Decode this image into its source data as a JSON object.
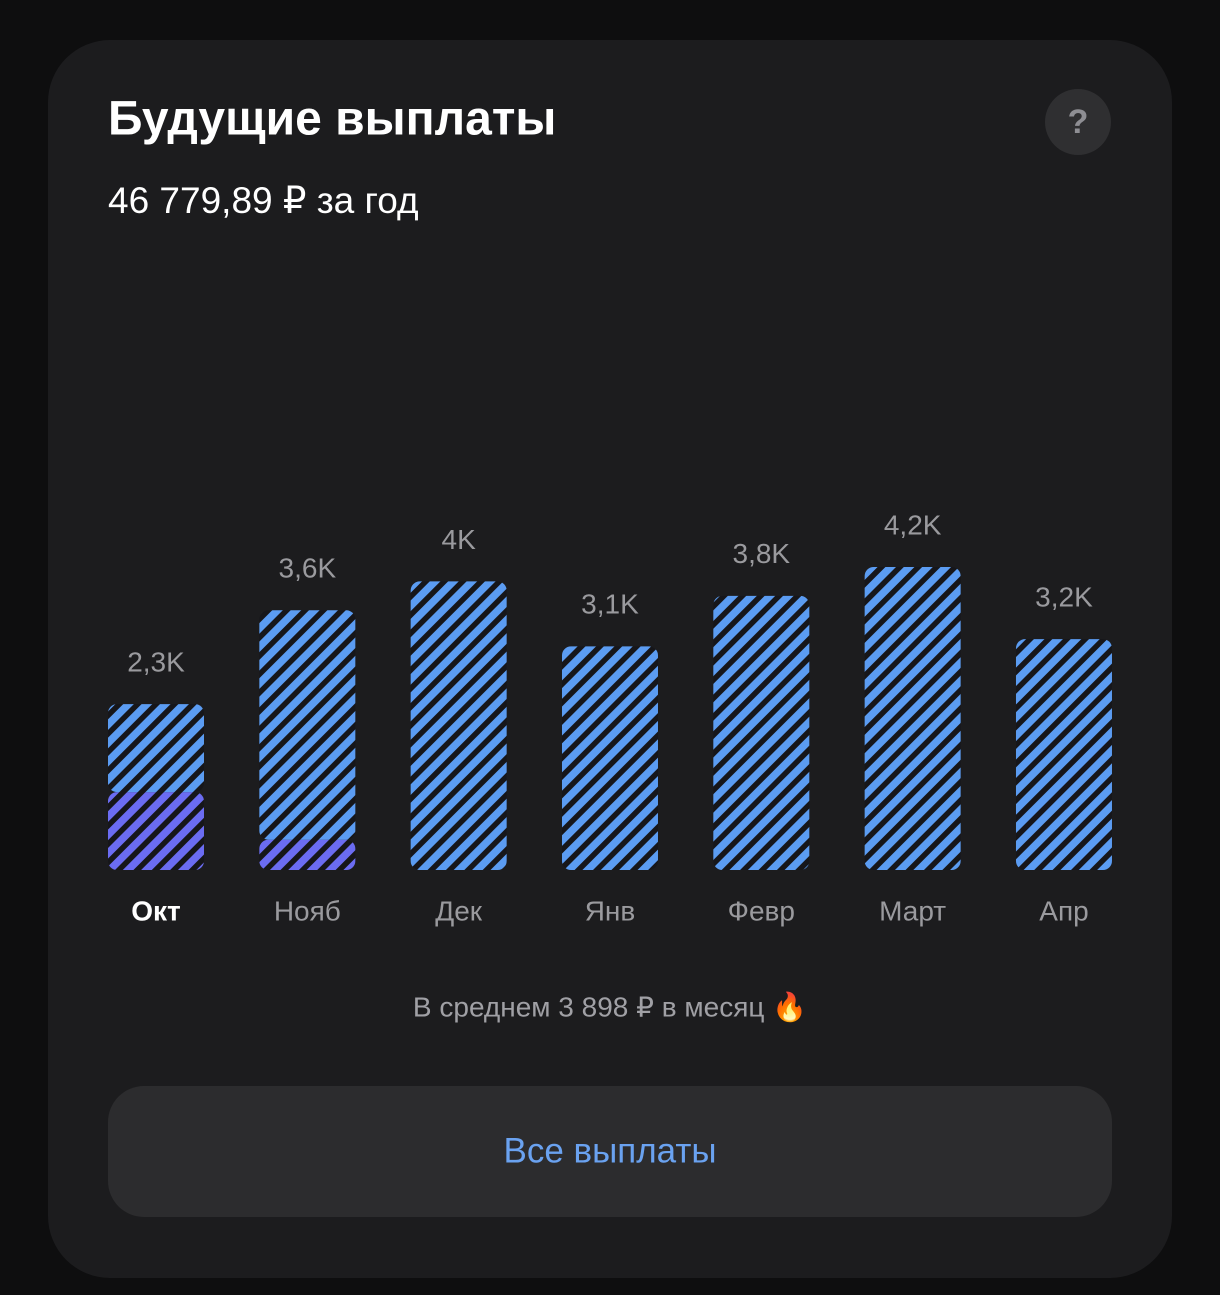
{
  "header": {
    "title": "Будущие выплаты",
    "subtitle": "46 779,89 ₽ за год",
    "help": "?"
  },
  "chart_data": {
    "type": "bar",
    "stacked": true,
    "categories": [
      "Окт",
      "Нояб",
      "Дек",
      "Янв",
      "Февр",
      "Март",
      "Апр"
    ],
    "selected_index": 0,
    "series": [
      {
        "color": "#6b6cf2",
        "values": [
          1080,
          420,
          null,
          null,
          null,
          null,
          null
        ]
      },
      {
        "color": "#5b9cf2",
        "values": [
          1220,
          3180,
          4000,
          3100,
          3800,
          4200,
          3200
        ]
      }
    ],
    "totals": {
      "values": [
        2300,
        3600,
        4000,
        3100,
        3800,
        4200,
        3200
      ],
      "value_labels": [
        "2,3K",
        "3,6K",
        "4K",
        "3,1K",
        "3,8K",
        "4,2K",
        "3,2K"
      ]
    },
    "ylim": [
      0,
      4200
    ],
    "hatched": true
  },
  "footer": {
    "average": "В среднем 3 898 ₽ в месяц 🔥",
    "button": "Все выплаты"
  }
}
